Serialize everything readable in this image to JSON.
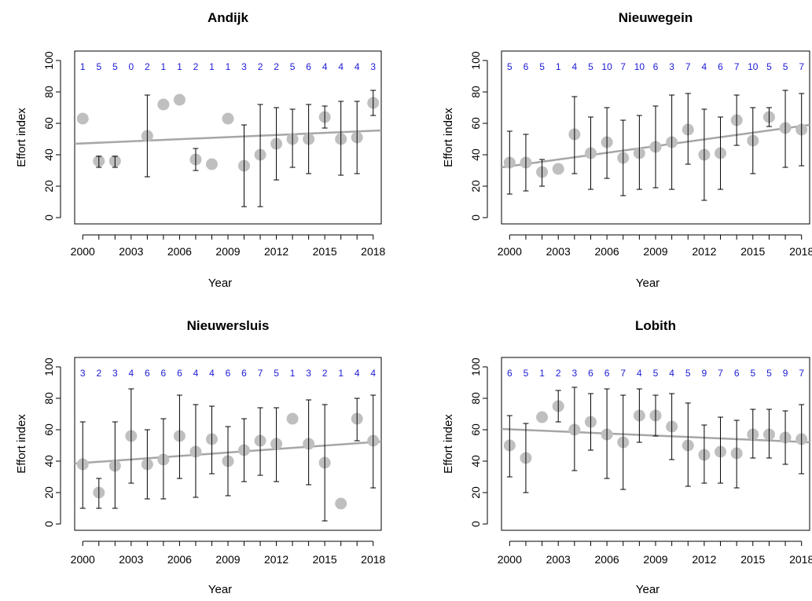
{
  "colors": {
    "point": "#bfbfbf",
    "trend": "#a6a6a6",
    "errorbar": "#000000",
    "sample_size_label": "#1a1ad6",
    "axis": "#000000"
  },
  "chart_data": [
    {
      "type": "scatter",
      "title": "Andijk",
      "xlabel": "Year",
      "ylabel": "Effort index",
      "xlim": [
        1999.5,
        2018.5
      ],
      "ylim": [
        0,
        100
      ],
      "x_ticks": [
        2000,
        2003,
        2006,
        2009,
        2012,
        2015,
        2018
      ],
      "y_ticks": [
        0,
        20,
        40,
        60,
        80,
        100
      ],
      "grid": false,
      "x": [
        2000,
        2001,
        2002,
        2003,
        2004,
        2005,
        2006,
        2007,
        2008,
        2009,
        2010,
        2011,
        2012,
        2013,
        2014,
        2015,
        2016,
        2017,
        2018
      ],
      "sample_sizes": [
        "1",
        "5",
        "5",
        "0",
        "2",
        "1",
        "1",
        "2",
        "1",
        "1",
        "3",
        "2",
        "2",
        "5",
        "6",
        "4",
        "4",
        "4",
        "3"
      ],
      "points": [
        {
          "x": 2000,
          "y": 63
        },
        {
          "x": 2001,
          "y": 36,
          "lo": 32,
          "hi": 39
        },
        {
          "x": 2002,
          "y": 36,
          "lo": 32,
          "hi": 39
        },
        {
          "x": 2004,
          "y": 52,
          "lo": 26,
          "hi": 78
        },
        {
          "x": 2005,
          "y": 72
        },
        {
          "x": 2006,
          "y": 75
        },
        {
          "x": 2007,
          "y": 37,
          "lo": 30,
          "hi": 44
        },
        {
          "x": 2008,
          "y": 34
        },
        {
          "x": 2009,
          "y": 63
        },
        {
          "x": 2010,
          "y": 33,
          "lo": 7,
          "hi": 59
        },
        {
          "x": 2011,
          "y": 40,
          "lo": 7,
          "hi": 72
        },
        {
          "x": 2012,
          "y": 47,
          "lo": 24,
          "hi": 70
        },
        {
          "x": 2013,
          "y": 50,
          "lo": 32,
          "hi": 69
        },
        {
          "x": 2014,
          "y": 50,
          "lo": 28,
          "hi": 72
        },
        {
          "x": 2015,
          "y": 64,
          "lo": 57,
          "hi": 71
        },
        {
          "x": 2016,
          "y": 50,
          "lo": 27,
          "hi": 74
        },
        {
          "x": 2017,
          "y": 51,
          "lo": 28,
          "hi": 74
        },
        {
          "x": 2018,
          "y": 73,
          "lo": 65,
          "hi": 81
        }
      ],
      "trend": {
        "x0": 1999.5,
        "y0": 47,
        "x1": 2018.5,
        "y1": 55.5
      }
    },
    {
      "type": "scatter",
      "title": "Nieuwegein",
      "xlabel": "Year",
      "ylabel": "Effort index",
      "xlim": [
        1999.5,
        2018.5
      ],
      "ylim": [
        0,
        100
      ],
      "x_ticks": [
        2000,
        2003,
        2006,
        2009,
        2012,
        2015,
        2018
      ],
      "y_ticks": [
        0,
        20,
        40,
        60,
        80,
        100
      ],
      "grid": false,
      "x": [
        2000,
        2001,
        2002,
        2003,
        2004,
        2005,
        2006,
        2007,
        2008,
        2009,
        2010,
        2011,
        2012,
        2013,
        2014,
        2015,
        2016,
        2017,
        2018
      ],
      "sample_sizes": [
        "5",
        "6",
        "5",
        "1",
        "4",
        "5",
        "10",
        "7",
        "10",
        "6",
        "3",
        "7",
        "4",
        "6",
        "7",
        "10",
        "5",
        "5",
        "7"
      ],
      "points": [
        {
          "x": 2000,
          "y": 35,
          "lo": 15,
          "hi": 55
        },
        {
          "x": 2001,
          "y": 35,
          "lo": 17,
          "hi": 53
        },
        {
          "x": 2002,
          "y": 29,
          "lo": 20,
          "hi": 37
        },
        {
          "x": 2003,
          "y": 31
        },
        {
          "x": 2004,
          "y": 53,
          "lo": 28,
          "hi": 77
        },
        {
          "x": 2005,
          "y": 41,
          "lo": 18,
          "hi": 64
        },
        {
          "x": 2006,
          "y": 48,
          "lo": 25,
          "hi": 70
        },
        {
          "x": 2007,
          "y": 38,
          "lo": 14,
          "hi": 62
        },
        {
          "x": 2008,
          "y": 41,
          "lo": 18,
          "hi": 65
        },
        {
          "x": 2009,
          "y": 45,
          "lo": 19,
          "hi": 71
        },
        {
          "x": 2010,
          "y": 48,
          "lo": 18,
          "hi": 78
        },
        {
          "x": 2011,
          "y": 56,
          "lo": 34,
          "hi": 79
        },
        {
          "x": 2012,
          "y": 40,
          "lo": 11,
          "hi": 69
        },
        {
          "x": 2013,
          "y": 41,
          "lo": 18,
          "hi": 64
        },
        {
          "x": 2014,
          "y": 62,
          "lo": 46,
          "hi": 78
        },
        {
          "x": 2015,
          "y": 49,
          "lo": 28,
          "hi": 70
        },
        {
          "x": 2016,
          "y": 64,
          "lo": 58,
          "hi": 70
        },
        {
          "x": 2017,
          "y": 57,
          "lo": 32,
          "hi": 81
        },
        {
          "x": 2018,
          "y": 56,
          "lo": 33,
          "hi": 79
        }
      ],
      "trend": {
        "x0": 1999.5,
        "y0": 32,
        "x1": 2018.5,
        "y1": 59
      }
    },
    {
      "type": "scatter",
      "title": "Nieuwersluis",
      "xlabel": "Year",
      "ylabel": "Effort index",
      "xlim": [
        1999.5,
        2018.5
      ],
      "ylim": [
        0,
        100
      ],
      "x_ticks": [
        2000,
        2003,
        2006,
        2009,
        2012,
        2015,
        2018
      ],
      "y_ticks": [
        0,
        20,
        40,
        60,
        80,
        100
      ],
      "grid": false,
      "x": [
        2000,
        2001,
        2002,
        2003,
        2004,
        2005,
        2006,
        2007,
        2008,
        2009,
        2010,
        2011,
        2012,
        2013,
        2014,
        2015,
        2016,
        2017,
        2018
      ],
      "sample_sizes": [
        "3",
        "2",
        "3",
        "4",
        "6",
        "6",
        "6",
        "4",
        "4",
        "6",
        "6",
        "7",
        "5",
        "1",
        "3",
        "2",
        "1",
        "4",
        "4"
      ],
      "points": [
        {
          "x": 2000,
          "y": 38,
          "lo": 10,
          "hi": 65
        },
        {
          "x": 2001,
          "y": 20,
          "lo": 10,
          "hi": 29
        },
        {
          "x": 2002,
          "y": 37,
          "lo": 10,
          "hi": 65
        },
        {
          "x": 2003,
          "y": 56,
          "lo": 26,
          "hi": 86
        },
        {
          "x": 2004,
          "y": 38,
          "lo": 16,
          "hi": 60
        },
        {
          "x": 2005,
          "y": 41,
          "lo": 16,
          "hi": 67
        },
        {
          "x": 2006,
          "y": 56,
          "lo": 29,
          "hi": 82
        },
        {
          "x": 2007,
          "y": 46,
          "lo": 17,
          "hi": 76
        },
        {
          "x": 2008,
          "y": 54,
          "lo": 32,
          "hi": 75
        },
        {
          "x": 2009,
          "y": 40,
          "lo": 18,
          "hi": 62
        },
        {
          "x": 2010,
          "y": 47,
          "lo": 27,
          "hi": 67
        },
        {
          "x": 2011,
          "y": 53,
          "lo": 31,
          "hi": 74
        },
        {
          "x": 2012,
          "y": 51,
          "lo": 27,
          "hi": 74
        },
        {
          "x": 2013,
          "y": 67
        },
        {
          "x": 2014,
          "y": 51,
          "lo": 25,
          "hi": 79
        },
        {
          "x": 2015,
          "y": 39,
          "lo": 2,
          "hi": 76
        },
        {
          "x": 2016,
          "y": 13
        },
        {
          "x": 2017,
          "y": 67,
          "lo": 53,
          "hi": 80
        },
        {
          "x": 2018,
          "y": 53,
          "lo": 23,
          "hi": 82
        }
      ],
      "trend": {
        "x0": 1999.5,
        "y0": 38.5,
        "x1": 2018.5,
        "y1": 52.5
      }
    },
    {
      "type": "scatter",
      "title": "Lobith",
      "xlabel": "Year",
      "ylabel": "Effort index",
      "xlim": [
        1999.5,
        2018.5
      ],
      "ylim": [
        0,
        100
      ],
      "x_ticks": [
        2000,
        2003,
        2006,
        2009,
        2012,
        2015,
        2018
      ],
      "y_ticks": [
        0,
        20,
        40,
        60,
        80,
        100
      ],
      "grid": false,
      "x": [
        2000,
        2001,
        2002,
        2003,
        2004,
        2005,
        2006,
        2007,
        2008,
        2009,
        2010,
        2011,
        2012,
        2013,
        2014,
        2015,
        2016,
        2017,
        2018
      ],
      "sample_sizes": [
        "6",
        "5",
        "1",
        "2",
        "3",
        "6",
        "6",
        "7",
        "4",
        "5",
        "4",
        "5",
        "9",
        "7",
        "6",
        "5",
        "5",
        "9",
        "7"
      ],
      "points": [
        {
          "x": 2000,
          "y": 50,
          "lo": 30,
          "hi": 69
        },
        {
          "x": 2001,
          "y": 42,
          "lo": 20,
          "hi": 64
        },
        {
          "x": 2002,
          "y": 68
        },
        {
          "x": 2003,
          "y": 75,
          "lo": 65,
          "hi": 85
        },
        {
          "x": 2004,
          "y": 60,
          "lo": 34,
          "hi": 87
        },
        {
          "x": 2005,
          "y": 65,
          "lo": 47,
          "hi": 83
        },
        {
          "x": 2006,
          "y": 57,
          "lo": 29,
          "hi": 86
        },
        {
          "x": 2007,
          "y": 52,
          "lo": 22,
          "hi": 82
        },
        {
          "x": 2008,
          "y": 69,
          "lo": 52,
          "hi": 86
        },
        {
          "x": 2009,
          "y": 69,
          "lo": 56,
          "hi": 82
        },
        {
          "x": 2010,
          "y": 62,
          "lo": 41,
          "hi": 83
        },
        {
          "x": 2011,
          "y": 50,
          "lo": 24,
          "hi": 77
        },
        {
          "x": 2012,
          "y": 44,
          "lo": 26,
          "hi": 63
        },
        {
          "x": 2013,
          "y": 46,
          "lo": 26,
          "hi": 68
        },
        {
          "x": 2014,
          "y": 45,
          "lo": 23,
          "hi": 66
        },
        {
          "x": 2015,
          "y": 57,
          "lo": 42,
          "hi": 73
        },
        {
          "x": 2016,
          "y": 57,
          "lo": 42,
          "hi": 73
        },
        {
          "x": 2017,
          "y": 55,
          "lo": 38,
          "hi": 72
        },
        {
          "x": 2018,
          "y": 54,
          "lo": 32,
          "hi": 76
        }
      ],
      "trend": {
        "x0": 1999.5,
        "y0": 60.5,
        "x1": 2018.5,
        "y1": 52
      }
    }
  ]
}
